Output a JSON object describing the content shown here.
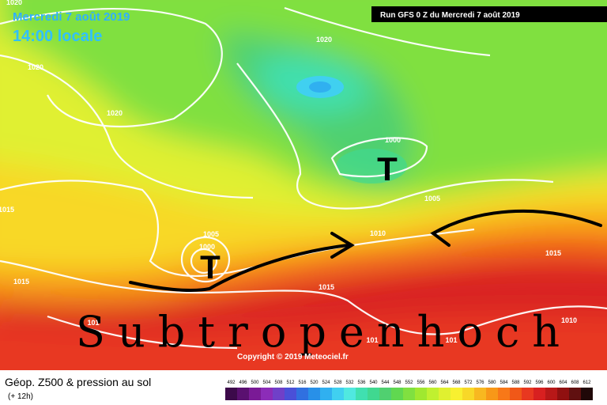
{
  "header": {
    "date": "Mercredi 7 août 2019",
    "time": "14:00 locale",
    "run": "Run GFS 0 Z du Mercredi 7 août 2019"
  },
  "isobar_labels": [
    "1020",
    "1020",
    "1020",
    "1020",
    "1015",
    "1000",
    "1005",
    "1010",
    "1005",
    "1000",
    "1015",
    "1015",
    "1015",
    "1010",
    "101",
    "101",
    "101"
  ],
  "annotations": {
    "low_north": "T",
    "low_west": "T",
    "high": "Subtropenhoch"
  },
  "copyright": "Copyright © 2019 Meteociel.fr",
  "footer": {
    "title": "Géop. Z500 & pression au sol",
    "step": "(+ 12h)"
  },
  "legend": {
    "labels": [
      "492",
      "496",
      "500",
      "504",
      "508",
      "512",
      "516",
      "520",
      "524",
      "528",
      "532",
      "536",
      "540",
      "544",
      "548",
      "552",
      "556",
      "560",
      "564",
      "568",
      "572",
      "576",
      "580",
      "584",
      "588",
      "592",
      "596",
      "600",
      "604",
      "608",
      "612"
    ],
    "colors": [
      "#3c0a4a",
      "#5a1070",
      "#7a1a96",
      "#8c2cb8",
      "#7040c8",
      "#4a50d8",
      "#3070e0",
      "#2890e8",
      "#30b0f0",
      "#40d0f0",
      "#50e8e0",
      "#40e0b0",
      "#40d890",
      "#50d070",
      "#60d850",
      "#80e040",
      "#a0e830",
      "#c0f030",
      "#e0f030",
      "#f8f030",
      "#f8d828",
      "#f8b820",
      "#f89818",
      "#f87818",
      "#f05818",
      "#e83820",
      "#d82020",
      "#b81818",
      "#901010",
      "#601010",
      "#200808"
    ]
  }
}
